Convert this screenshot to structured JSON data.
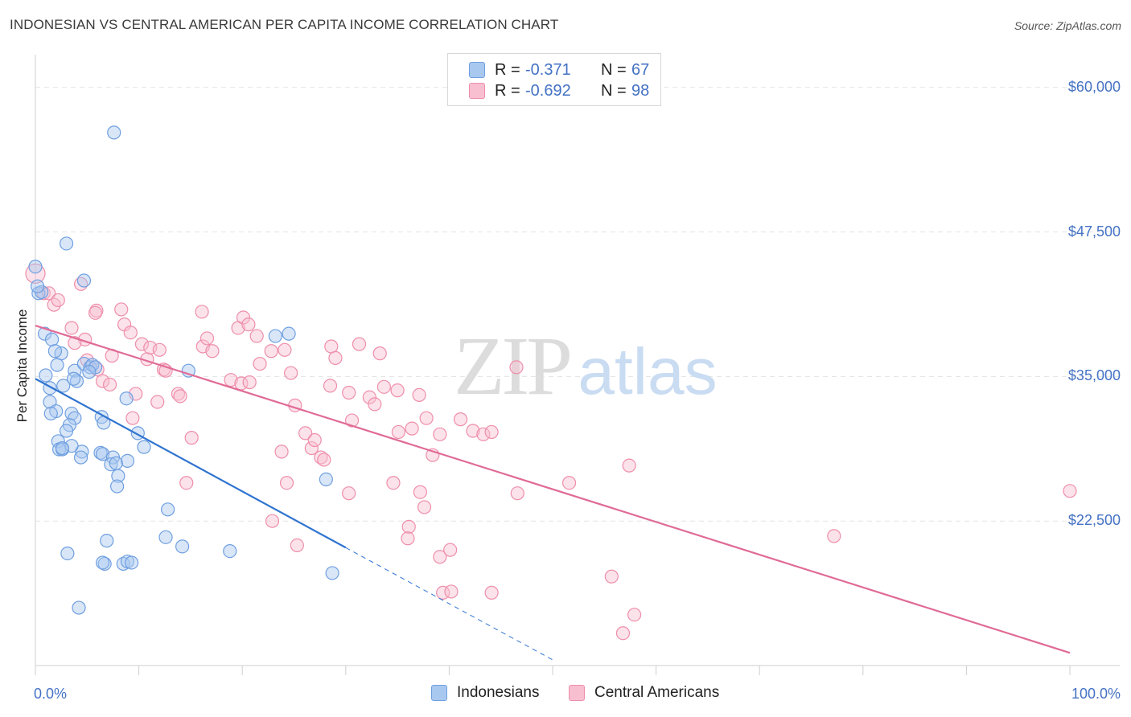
{
  "header": {
    "title": "INDONESIAN VS CENTRAL AMERICAN PER CAPITA INCOME CORRELATION CHART",
    "source": "Source: ZipAtlas.com"
  },
  "watermark": {
    "zip": "ZIP",
    "atlas": "atlas"
  },
  "legend": {
    "rows": [
      {
        "r_label": "R =",
        "r_value": "-0.371",
        "n_label": "N =",
        "n_value": "67",
        "color": "#a9c8f0",
        "border": "#6f9fe0"
      },
      {
        "r_label": "R =",
        "r_value": "-0.692",
        "n_label": "N =",
        "n_value": "98",
        "color": "#f8bfd0",
        "border": "#ee8eaa"
      }
    ]
  },
  "bottom_legend": {
    "indonesians": "Indonesians",
    "central_americans": "Central Americans"
  },
  "chart_data": {
    "type": "scatter",
    "xlabel": "",
    "ylabel": "Per Capita Income",
    "xlim": [
      0,
      100
    ],
    "ylim": [
      10000,
      62000
    ],
    "x_tick_labels": [
      "0.0%",
      "100.0%"
    ],
    "y_ticks": [
      22500,
      35000,
      47500,
      60000
    ],
    "y_tick_labels": [
      "$22,500",
      "$35,000",
      "$47,500",
      "$60,000"
    ],
    "grid": true,
    "colors": {
      "indonesians": "#6f9fe0",
      "central_americans": "#ee8eaa",
      "blue_line": "#2f74d0",
      "pink_line": "#e06b96",
      "axis_text": "#4472c4"
    },
    "series": [
      {
        "name": "Indonesians",
        "trend": {
          "x0": 0,
          "y0": 34800,
          "x1": 30,
          "y1": 20200,
          "dash_to_x": 50,
          "dash_to_y": 10500
        },
        "points": [
          [
            7.6,
            56100
          ],
          [
            3.0,
            46500
          ],
          [
            0.0,
            44500
          ],
          [
            4.7,
            43300
          ],
          [
            0.3,
            42200
          ],
          [
            0.6,
            42300
          ],
          [
            0.9,
            38700
          ],
          [
            1.6,
            38200
          ],
          [
            2.5,
            37000
          ],
          [
            1.9,
            37200
          ],
          [
            2.1,
            36000
          ],
          [
            3.8,
            35500
          ],
          [
            4.7,
            36100
          ],
          [
            5.3,
            35800
          ],
          [
            1.0,
            35100
          ],
          [
            4.0,
            34600
          ],
          [
            3.7,
            34800
          ],
          [
            2.7,
            34200
          ],
          [
            1.4,
            34000
          ],
          [
            1.4,
            32800
          ],
          [
            2.0,
            32000
          ],
          [
            3.5,
            31800
          ],
          [
            3.8,
            31400
          ],
          [
            6.4,
            31500
          ],
          [
            6.6,
            31000
          ],
          [
            3.3,
            30800
          ],
          [
            3.0,
            30300
          ],
          [
            8.8,
            33100
          ],
          [
            9.9,
            30100
          ],
          [
            2.2,
            29400
          ],
          [
            2.3,
            28700
          ],
          [
            2.6,
            28700
          ],
          [
            4.5,
            28500
          ],
          [
            4.4,
            28000
          ],
          [
            6.3,
            28400
          ],
          [
            6.5,
            28300
          ],
          [
            7.5,
            28000
          ],
          [
            8.9,
            27700
          ],
          [
            7.3,
            27400
          ],
          [
            10.5,
            28900
          ],
          [
            8.0,
            26400
          ],
          [
            7.9,
            25500
          ],
          [
            23.2,
            38500
          ],
          [
            24.5,
            38700
          ],
          [
            14.8,
            35500
          ],
          [
            12.8,
            23500
          ],
          [
            28.1,
            26100
          ],
          [
            12.6,
            21100
          ],
          [
            14.2,
            20300
          ],
          [
            6.9,
            20800
          ],
          [
            3.1,
            19700
          ],
          [
            18.8,
            19900
          ],
          [
            6.7,
            18800
          ],
          [
            6.5,
            18900
          ],
          [
            8.5,
            18800
          ],
          [
            8.9,
            19000
          ],
          [
            28.7,
            18000
          ],
          [
            4.2,
            15000
          ],
          [
            5.5,
            36000
          ],
          [
            5.8,
            35800
          ],
          [
            3.5,
            29000
          ],
          [
            1.5,
            31800
          ],
          [
            7.8,
            27500
          ],
          [
            2.6,
            28800
          ],
          [
            5.2,
            35400
          ],
          [
            9.3,
            18900
          ],
          [
            0.2,
            42800
          ]
        ]
      },
      {
        "name": "Central Americans",
        "trend": {
          "x0": 0,
          "y0": 39400,
          "x1": 100,
          "y1": 11100
        },
        "points": [
          [
            0.0,
            43900
          ],
          [
            0.8,
            42200
          ],
          [
            1.3,
            42200
          ],
          [
            1.8,
            41200
          ],
          [
            2.2,
            41600
          ],
          [
            4.4,
            43000
          ],
          [
            5.0,
            36400
          ],
          [
            4.8,
            38200
          ],
          [
            3.5,
            39200
          ],
          [
            3.8,
            37900
          ],
          [
            6.0,
            35600
          ],
          [
            5.9,
            40700
          ],
          [
            8.3,
            40800
          ],
          [
            8.6,
            39500
          ],
          [
            9.2,
            38800
          ],
          [
            10.3,
            37800
          ],
          [
            10.8,
            36500
          ],
          [
            11.1,
            37500
          ],
          [
            12.0,
            37300
          ],
          [
            12.4,
            35600
          ],
          [
            6.5,
            34600
          ],
          [
            7.4,
            36800
          ],
          [
            7.2,
            34300
          ],
          [
            9.7,
            33500
          ],
          [
            11.8,
            32800
          ],
          [
            12.6,
            35500
          ],
          [
            13.8,
            33500
          ],
          [
            14.0,
            33300
          ],
          [
            15.1,
            29700
          ],
          [
            14.6,
            25800
          ],
          [
            16.2,
            37600
          ],
          [
            16.1,
            40600
          ],
          [
            16.6,
            38300
          ],
          [
            17.1,
            37200
          ],
          [
            18.9,
            34700
          ],
          [
            19.9,
            34400
          ],
          [
            19.6,
            39200
          ],
          [
            20.1,
            40100
          ],
          [
            20.6,
            39500
          ],
          [
            21.4,
            38500
          ],
          [
            21.7,
            36100
          ],
          [
            22.8,
            37200
          ],
          [
            24.1,
            37300
          ],
          [
            24.7,
            35300
          ],
          [
            25.1,
            32500
          ],
          [
            20.7,
            34500
          ],
          [
            23.8,
            28500
          ],
          [
            24.3,
            25800
          ],
          [
            22.9,
            22500
          ],
          [
            25.3,
            20400
          ],
          [
            26.1,
            30100
          ],
          [
            26.7,
            28800
          ],
          [
            27.0,
            29500
          ],
          [
            27.6,
            28000
          ],
          [
            27.9,
            27800
          ],
          [
            28.5,
            34200
          ],
          [
            28.6,
            37600
          ],
          [
            29.0,
            36600
          ],
          [
            30.3,
            33600
          ],
          [
            30.6,
            31200
          ],
          [
            31.3,
            37800
          ],
          [
            32.3,
            33200
          ],
          [
            32.8,
            32600
          ],
          [
            33.3,
            37000
          ],
          [
            33.7,
            34100
          ],
          [
            35.0,
            33800
          ],
          [
            35.1,
            30200
          ],
          [
            34.6,
            25800
          ],
          [
            36.4,
            30500
          ],
          [
            37.1,
            33400
          ],
          [
            37.8,
            31400
          ],
          [
            38.4,
            28200
          ],
          [
            39.1,
            30000
          ],
          [
            37.6,
            23700
          ],
          [
            37.2,
            25000
          ],
          [
            36.1,
            22000
          ],
          [
            36.0,
            21000
          ],
          [
            40.1,
            20000
          ],
          [
            39.1,
            19400
          ],
          [
            39.4,
            16300
          ],
          [
            40.2,
            16400
          ],
          [
            41.1,
            31300
          ],
          [
            42.3,
            30300
          ],
          [
            43.3,
            30000
          ],
          [
            44.1,
            30200
          ],
          [
            46.6,
            24900
          ],
          [
            51.6,
            25800
          ],
          [
            55.7,
            17700
          ],
          [
            57.4,
            27300
          ],
          [
            57.9,
            14400
          ],
          [
            56.8,
            12800
          ],
          [
            77.2,
            21200
          ],
          [
            100.0,
            25100
          ],
          [
            46.5,
            35800
          ],
          [
            44.1,
            16300
          ],
          [
            30.3,
            24900
          ],
          [
            5.8,
            40500
          ],
          [
            9.4,
            31400
          ]
        ]
      }
    ]
  }
}
